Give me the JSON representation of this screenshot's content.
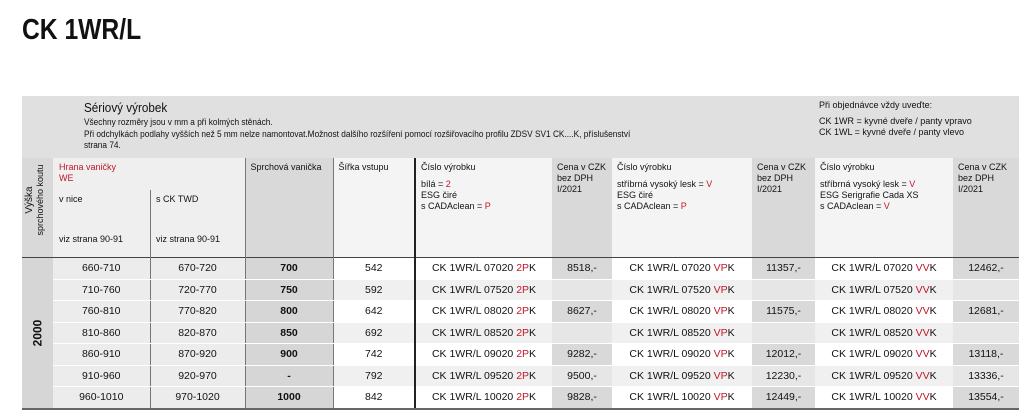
{
  "title": "CK 1WR/L",
  "band": {
    "heading": "Sériový výrobek",
    "notes": [
      "Všechny rozměry jsou v mm a při kolmých stěnách.",
      "Při odchylkách podlahy vyšších než 5 mm nelze namontovat.Možnost dalšího rozšíření pomocí rozšiřovacího profilu ZDSV SV1 CK....K, příslušenství",
      "strana 74."
    ],
    "order_title": "Při objednávce vždy uveďte:",
    "order_lines": [
      "CK 1WR = kyvné dveře / panty vpravo",
      "CK 1WL = kyvné dveře / panty vlevo"
    ]
  },
  "header": {
    "height_label_1": "Výška",
    "height_label_2": "sprchového koutu",
    "edge": "Hrana vaničky",
    "edge_we": "WE",
    "niche": "v nice",
    "twd": "s CK TWD",
    "niche_ref": "viz strana 90-91",
    "twd_ref": "viz strana 90-91",
    "tray": "Sprchová vanička",
    "entry": "Šířka vstupu",
    "code1": {
      "title": "Číslo výrobku",
      "l1": "bílá = ",
      "l1v": "2",
      "l2": "ESG čiré",
      "l3": "s CADAclean = ",
      "l3v": "P"
    },
    "code2": {
      "title": "Číslo výrobku",
      "l1": "stříbrná vysoký lesk = ",
      "l1v": "V",
      "l2": "ESG čiré",
      "l3": "s CADAclean = ",
      "l3v": "P"
    },
    "code3": {
      "title": "Číslo výrobku",
      "l1": "stříbrná vysoký lesk = ",
      "l1v": "V",
      "l2": "ESG Serigrafie Cada XS",
      "l3": "s CADAclean = ",
      "l3v": "V"
    },
    "price": [
      "Cena v CZK",
      "bez DPH",
      "I/2021"
    ]
  },
  "height_value": "2000",
  "accent": "#c0182a",
  "rows": [
    {
      "niche": "660-710",
      "twd": "670-720",
      "tray": "700",
      "entry": "542",
      "base": "CK 1WR/L 07020 ",
      "p1": "8518,-",
      "p2": "11357,-",
      "p3": "12462,-"
    },
    {
      "niche": "710-760",
      "twd": "720-770",
      "tray": "750",
      "entry": "592",
      "base": "CK 1WR/L 07520 ",
      "p1": "",
      "p2": "",
      "p3": ""
    },
    {
      "niche": "760-810",
      "twd": "770-820",
      "tray": "800",
      "entry": "642",
      "base": "CK 1WR/L 08020 ",
      "p1": "8627,-",
      "p2": "11575,-",
      "p3": "12681,-"
    },
    {
      "niche": "810-860",
      "twd": "820-870",
      "tray": "850",
      "entry": "692",
      "base": "CK 1WR/L 08520 ",
      "p1": "",
      "p2": "",
      "p3": ""
    },
    {
      "niche": "860-910",
      "twd": "870-920",
      "tray": "900",
      "entry": "742",
      "base": "CK 1WR/L 09020 ",
      "p1": "9282,-",
      "p2": "12012,-",
      "p3": "13118,-"
    },
    {
      "niche": "910-960",
      "twd": "920-970",
      "tray": "-",
      "entry": "792",
      "base": "CK 1WR/L 09520 ",
      "p1": "9500,-",
      "p2": "12230,-",
      "p3": "13336,-"
    },
    {
      "niche": "960-1010",
      "twd": "970-1020",
      "tray": "1000",
      "entry": "842",
      "base": "CK 1WR/L 10020 ",
      "p1": "9828,-",
      "p2": "12449,-",
      "p3": "13554,-"
    }
  ],
  "suffixes": [
    {
      "red": "2P",
      "black": "K"
    },
    {
      "red": "VP",
      "black": "K"
    },
    {
      "red": "VV",
      "black": "K"
    }
  ]
}
